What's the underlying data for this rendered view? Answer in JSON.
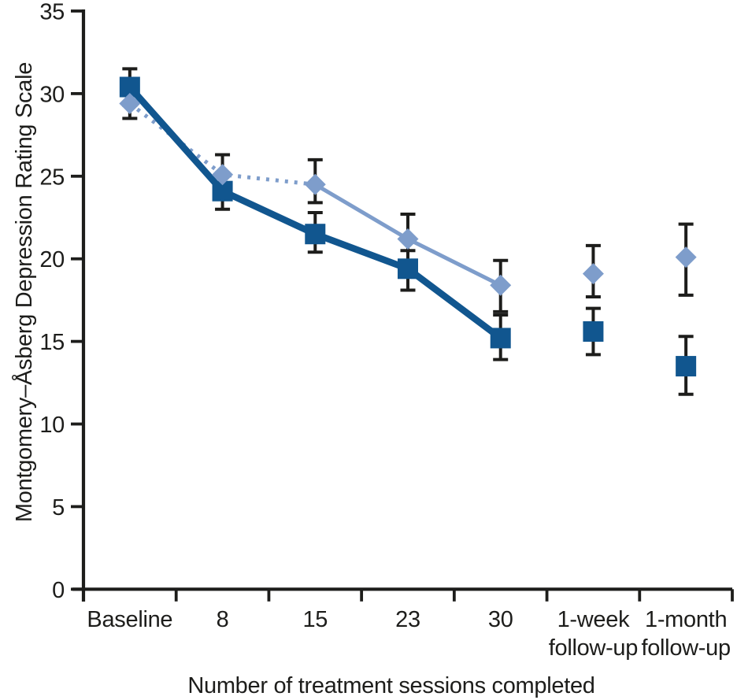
{
  "chart_data": {
    "type": "line",
    "title": "",
    "xlabel": "Number of treatment sessions completed",
    "ylabel": "Montgomery–Åsberg Depression Rating Scale",
    "x_axis": {
      "categories": [
        "Baseline",
        "8",
        "15",
        "23",
        "30",
        "1-week\nfollow-up",
        "1-month\nfollow-up"
      ]
    },
    "y_axis": {
      "min": 0,
      "max": 35,
      "ticks": [
        0,
        5,
        10,
        15,
        20,
        25,
        30,
        35
      ]
    },
    "grid": false,
    "legend": "none",
    "error_bars": true,
    "colors": {
      "axis": "#1d1d1b",
      "error_bar": "#1d1d1b",
      "dark_series": "#11568f",
      "light_series": "#7e9dcb"
    },
    "series": [
      {
        "name": "light-blue-diamonds",
        "marker": "diamond",
        "color": "#7e9dcb",
        "values": [
          29.4,
          25.1,
          24.5,
          21.2,
          18.4,
          19.1,
          20.1
        ],
        "err_low": [
          28.5,
          24.2,
          23.4,
          19.9,
          16.8,
          17.7,
          17.8
        ],
        "err_high": [
          30.3,
          26.3,
          26.0,
          22.7,
          19.9,
          20.8,
          22.1
        ],
        "line_segments": [
          {
            "from": 0,
            "to": 2,
            "style": "dotted"
          },
          {
            "from": 2,
            "to": 4,
            "style": "solid"
          }
        ]
      },
      {
        "name": "dark-blue-squares",
        "marker": "square",
        "color": "#11568f",
        "values": [
          30.4,
          24.1,
          21.5,
          19.4,
          15.2,
          15.6,
          13.5
        ],
        "err_low": [
          29.3,
          23.0,
          20.4,
          18.1,
          13.9,
          14.2,
          11.8
        ],
        "err_high": [
          31.5,
          25.2,
          22.8,
          20.5,
          16.6,
          17.0,
          15.3
        ],
        "line_segments": [
          {
            "from": 0,
            "to": 4,
            "style": "solid"
          }
        ]
      }
    ]
  }
}
